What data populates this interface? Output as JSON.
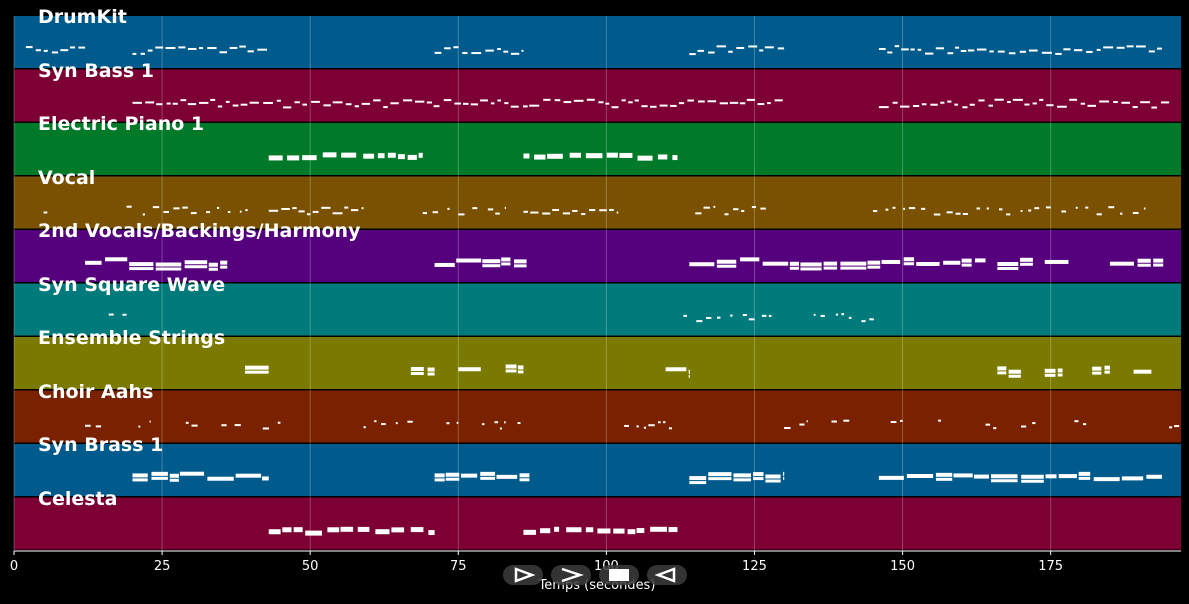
{
  "chart_data": {
    "type": "piano-roll",
    "xlabel": "Temps (secondes)",
    "xlim": [
      0,
      197
    ],
    "xticks": [
      0,
      25,
      50,
      75,
      100,
      125,
      150,
      175
    ],
    "tracks": [
      {
        "name": "DrumKit",
        "color": "#005a8c",
        "segments": [
          [
            2,
            12,
            "dense"
          ],
          [
            20,
            43,
            "dense"
          ],
          [
            71,
            86,
            "dense"
          ],
          [
            114,
            130,
            "dense"
          ],
          [
            146,
            194,
            "dense"
          ]
        ]
      },
      {
        "name": "Syn Bass 1",
        "color": "#7c0033",
        "segments": [
          [
            20,
            130,
            "dense"
          ],
          [
            146,
            195,
            "dense"
          ]
        ]
      },
      {
        "name": "Electric Piano 1",
        "color": "#007a28",
        "segments": [
          [
            43,
            69,
            "chords"
          ],
          [
            86,
            112,
            "chords"
          ]
        ]
      },
      {
        "name": "Vocal",
        "color": "#7a5100",
        "segments": [
          [
            5,
            6,
            "sparse"
          ],
          [
            19,
            40,
            "sparse"
          ],
          [
            43,
            59,
            "dense"
          ],
          [
            69,
            83,
            "sparse"
          ],
          [
            86,
            102,
            "dense"
          ],
          [
            115,
            127,
            "sparse"
          ],
          [
            145,
            191,
            "sparse"
          ]
        ]
      },
      {
        "name": "2nd Vocals/Backings/Harmony",
        "color": "#55007c",
        "segments": [
          [
            12,
            36,
            "long"
          ],
          [
            71,
            87,
            "long"
          ],
          [
            114,
            164,
            "long"
          ],
          [
            166,
            172,
            "long"
          ],
          [
            174,
            178,
            "long"
          ],
          [
            185,
            194,
            "long"
          ]
        ]
      },
      {
        "name": "Syn Square Wave",
        "color": "#007a7a",
        "segments": [
          [
            16,
            19,
            "sparse"
          ],
          [
            113,
            128,
            "sparse"
          ],
          [
            135,
            146,
            "sparse"
          ]
        ]
      },
      {
        "name": "Ensemble Strings",
        "color": "#7a7a00",
        "segments": [
          [
            39,
            43,
            "long"
          ],
          [
            67,
            71,
            "long"
          ],
          [
            75,
            79,
            "long"
          ],
          [
            83,
            86,
            "long"
          ],
          [
            110,
            114,
            "long"
          ],
          [
            166,
            170,
            "long"
          ],
          [
            174,
            177,
            "long"
          ],
          [
            182,
            185,
            "long"
          ],
          [
            189,
            192,
            "long"
          ]
        ]
      },
      {
        "name": "Choir Aahs",
        "color": "#7a2200",
        "segments": [
          [
            12,
            15,
            "sparse"
          ],
          [
            21,
            23,
            "sparse"
          ],
          [
            29,
            31,
            "sparse"
          ],
          [
            35,
            39,
            "sparse"
          ],
          [
            42,
            45,
            "sparse"
          ],
          [
            59,
            68,
            "sparse"
          ],
          [
            73,
            75,
            "sparse"
          ],
          [
            79,
            83,
            "sparse"
          ],
          [
            85,
            86,
            "sparse"
          ],
          [
            103,
            112,
            "sparse"
          ],
          [
            130,
            134,
            "sparse"
          ],
          [
            138,
            139,
            "sparse"
          ],
          [
            140,
            141,
            "sparse"
          ],
          [
            148,
            150,
            "sparse"
          ],
          [
            156,
            158,
            "sparse"
          ],
          [
            164,
            166,
            "sparse"
          ],
          [
            170,
            173,
            "sparse"
          ],
          [
            179,
            181,
            "sparse"
          ],
          [
            195,
            197,
            "sparse"
          ]
        ]
      },
      {
        "name": "Syn Brass 1",
        "color": "#005a8c",
        "segments": [
          [
            20,
            43,
            "long"
          ],
          [
            71,
            87,
            "long"
          ],
          [
            114,
            130,
            "long"
          ],
          [
            146,
            194,
            "long"
          ]
        ]
      },
      {
        "name": "Celesta",
        "color": "#7c0033",
        "segments": [
          [
            43,
            71,
            "chords"
          ],
          [
            86,
            112,
            "chords"
          ]
        ]
      }
    ]
  },
  "controls": {
    "play_icon": "play-outline-icon",
    "forward_icon": "forward-chevron-icon",
    "stop_icon": "stop-square-icon",
    "rewind_icon": "rewind-outline-icon"
  }
}
